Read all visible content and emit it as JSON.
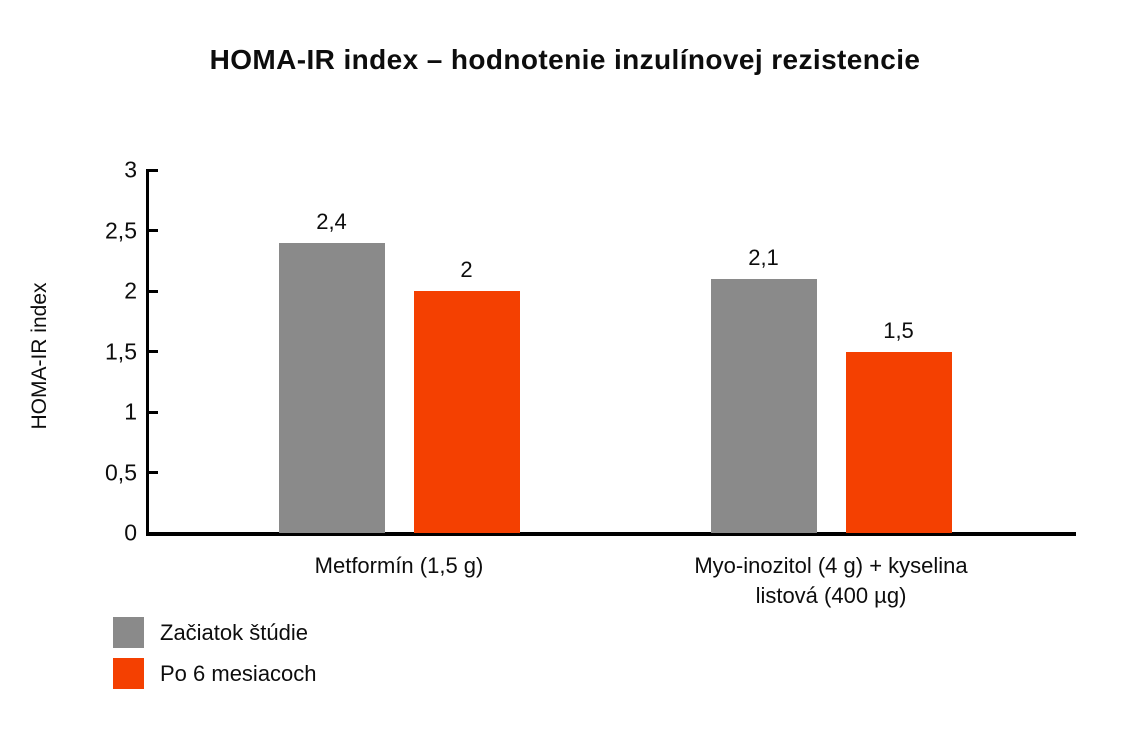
{
  "chart_data": {
    "type": "bar",
    "title": "HOMA-IR index – hodnotenie inzulínovej rezistencie",
    "xlabel": "",
    "ylabel": "HOMA-IR index",
    "categories": [
      "Metformín (1,5 g)",
      "Myo-inozitol (4 g) + kyselina listová (400 µg)"
    ],
    "category_display": [
      "Metformín (1,5 g)",
      "Myo-inozitol (4 g) + kyselina listová (400 µg)"
    ],
    "series": [
      {
        "name": "Začiatok štúdie",
        "color": "#8A8A8A",
        "values": [
          2.4,
          2.1
        ],
        "value_labels": [
          "2,4",
          "2,1"
        ]
      },
      {
        "name": "Po 6 mesiacoch",
        "color": "#F44001",
        "values": [
          2.0,
          1.5
        ],
        "value_labels": [
          "2",
          "1,5"
        ]
      }
    ],
    "ylim": [
      0,
      3
    ],
    "yticks": [
      0,
      0.5,
      1,
      1.5,
      2,
      2.5,
      3
    ],
    "ytick_labels": [
      "0",
      "0,5",
      "1",
      "1,5",
      "2",
      "2,5",
      "3"
    ],
    "decimal_separator": ",",
    "grid": false,
    "legend_position": "bottom-left",
    "colors": {
      "axis": "#000000",
      "text": "#0d0d0d",
      "background": "#ffffff"
    }
  }
}
